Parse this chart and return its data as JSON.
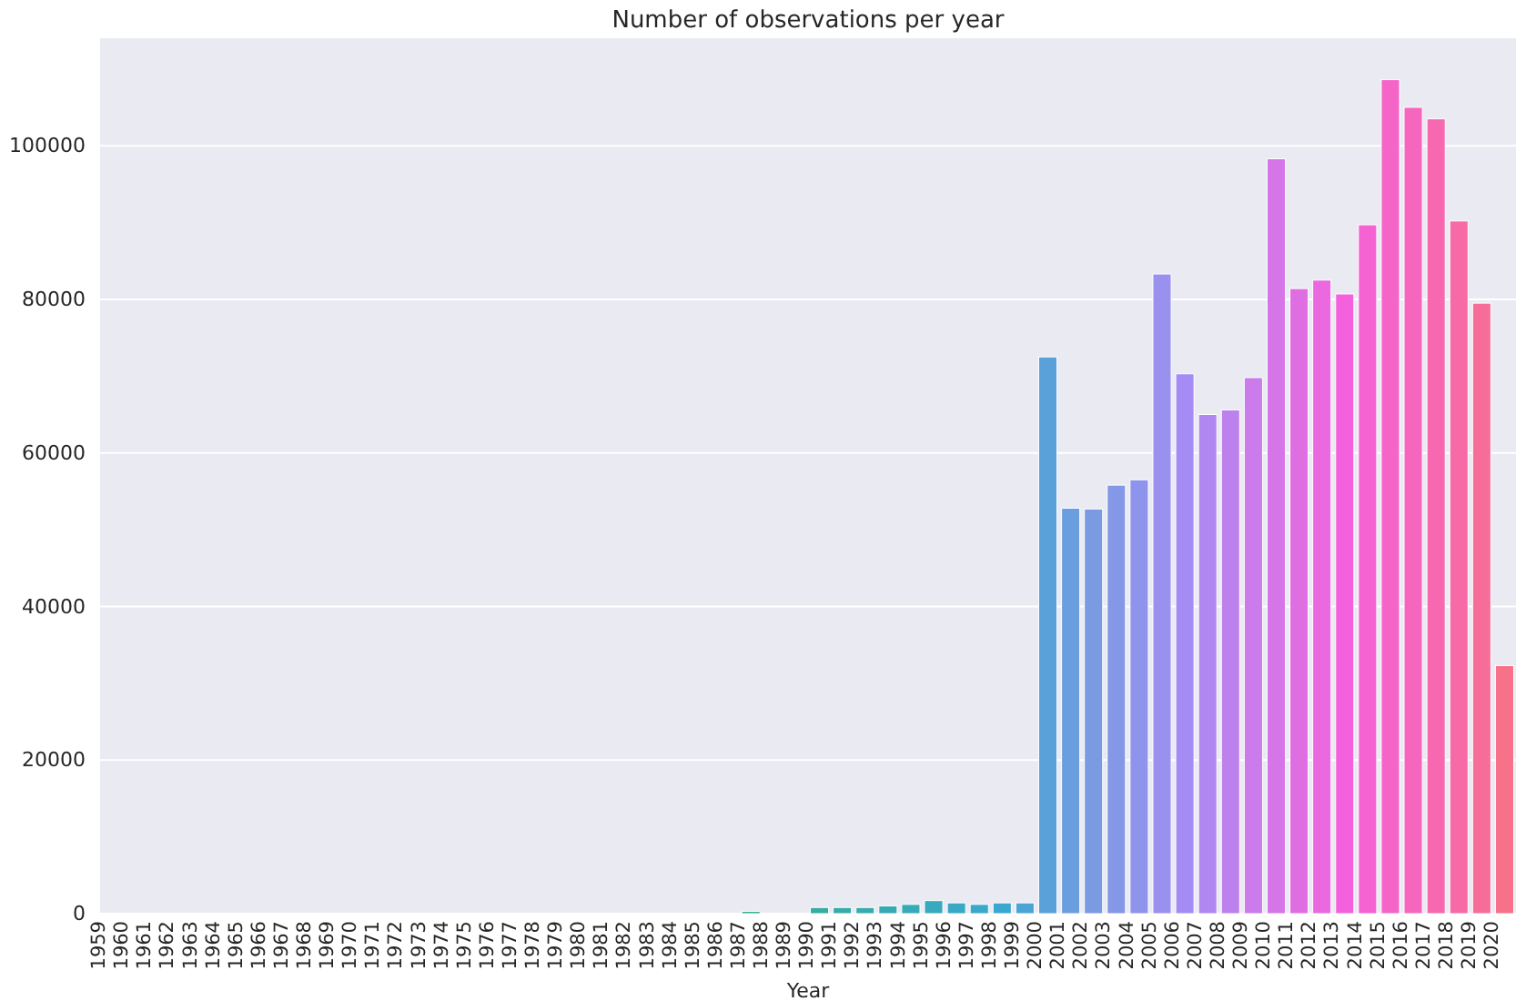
{
  "chart_data": {
    "type": "bar",
    "title": "Number of observations per year",
    "xlabel": "Year",
    "categories": [
      "1959",
      "1960",
      "1961",
      "1962",
      "1963",
      "1964",
      "1965",
      "1966",
      "1967",
      "1968",
      "1969",
      "1970",
      "1971",
      "1972",
      "1973",
      "1974",
      "1975",
      "1976",
      "1977",
      "1978",
      "1979",
      "1980",
      "1981",
      "1982",
      "1983",
      "1984",
      "1985",
      "1986",
      "1987",
      "1988",
      "1989",
      "1990",
      "1991",
      "1992",
      "1993",
      "1994",
      "1995",
      "1996",
      "1997",
      "1998",
      "1999",
      "2000",
      "2001",
      "2002",
      "2003",
      "2004",
      "2005",
      "2006",
      "2007",
      "2008",
      "2009",
      "2010",
      "2011",
      "2012",
      "2013",
      "2014",
      "2015",
      "2016",
      "2017",
      "2018",
      "2019",
      "2020"
    ],
    "values": [
      0,
      0,
      0,
      0,
      0,
      0,
      0,
      0,
      0,
      0,
      0,
      0,
      0,
      0,
      0,
      0,
      0,
      0,
      0,
      0,
      0,
      0,
      0,
      0,
      0,
      0,
      0,
      0,
      300,
      0,
      0,
      800,
      800,
      800,
      1000,
      1200,
      1700,
      1400,
      1200,
      1400,
      1400,
      72500,
      52800,
      52700,
      55800,
      56500,
      83300,
      70300,
      65000,
      65600,
      69800,
      98300,
      81400,
      82500,
      80700,
      89700,
      108600,
      105000,
      103500,
      90200,
      79500,
      32300
    ],
    "colors": [
      "#f77189",
      "#f27381",
      "#ee7579",
      "#e97871",
      "#e37b63",
      "#dd7f55",
      "#d88447",
      "#d3893c",
      "#ce9032",
      "#c89332",
      "#c19532",
      "#ba9832",
      "#b39a32",
      "#ac9c31",
      "#a59e31",
      "#9ea131",
      "#97a431",
      "#8aa636",
      "#7aa83c",
      "#6aaa44",
      "#5aac4c",
      "#4aae55",
      "#3eaf5d",
      "#32b166",
      "#32b16d",
      "#33b075",
      "#33af7e",
      "#34af86",
      "#34ae8e",
      "#35ae96",
      "#35ad9d",
      "#36ada4",
      "#36aca9",
      "#37abae",
      "#37aab4",
      "#37aab9",
      "#38a9bf",
      "#38a8c5",
      "#39a8ca",
      "#39a7d0",
      "#4aa4d5",
      "#5aa1d9",
      "#6b9ede",
      "#7a9ae2",
      "#8597e7",
      "#8e93ec",
      "#9990f0",
      "#a48cf4",
      "#b087f1",
      "#bd81ee",
      "#c97cea",
      "#d675e7",
      "#e06ee3",
      "#eb68e0",
      "#f561dd",
      "#f563d3",
      "#f565c8",
      "#f567bd",
      "#f669b1",
      "#f66ba6",
      "#f76d99",
      "#f77189"
    ],
    "ylim": [
      0,
      114000
    ],
    "yticks": [
      0,
      20000,
      40000,
      60000,
      80000,
      100000
    ],
    "grid": "y"
  }
}
